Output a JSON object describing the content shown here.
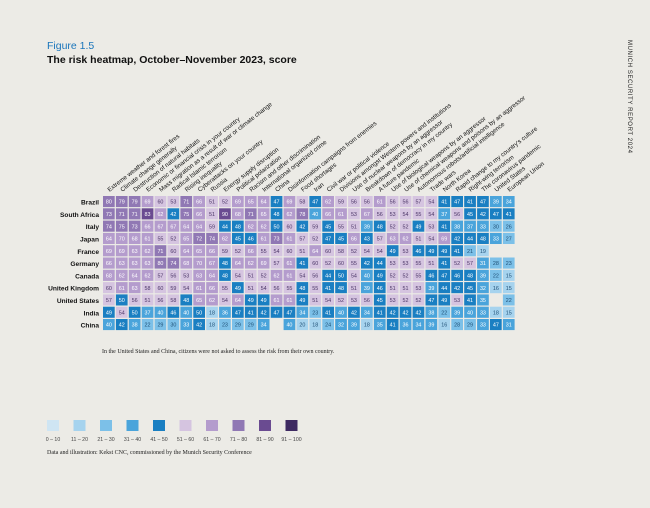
{
  "header": {
    "figure_label": "Figure 1.5",
    "title": "The risk heatmap, October–November 2023, score",
    "side_text": "MUNICH SECURITY REPORT 2024"
  },
  "footnote": "In the United States and China, citizens were not asked to assess the risk from their own country.",
  "source": "Data and illustration: Kekst CNC, commissioned by the Munich Security Conference",
  "chart_data": {
    "type": "heatmap",
    "countries": [
      "Brazil",
      "South Africa",
      "Italy",
      "Japan",
      "France",
      "Germany",
      "Canada",
      "United Kingdom",
      "United States",
      "India",
      "China"
    ],
    "risks": [
      "Extreme weather and forest fires",
      "Climate change generally",
      "Destruction of natural habitats",
      "Economic or financial crisis in your country",
      "Mass migration as a result of war or climate change",
      "Radical Islamic terrorism",
      "Rising inequality",
      "Cyberattacks on your country",
      "Russia",
      "Energy supply disruption",
      "Political polarization",
      "Racism and other discrimination",
      "International organized crime",
      "China",
      "Disinformation campaigns from enemies",
      "Food shortages",
      "Iran",
      "Civil war or political violence",
      "Divisions amongst Western powers and institutions",
      "Use of nuclear weapons by an aggressor",
      "Breakdown of democracy in my country",
      "A future pandemic",
      "Use of biological weapons by an aggressor",
      "Use of chemical weapons and poisons by an aggressor",
      "Autonomous robots/artificial intelligence",
      "Trade wars",
      "North Korea",
      "Rapid change to my country's culture",
      "Right-wing terrorism",
      "The coronavirus pandemic",
      "United States",
      "European Union"
    ],
    "values": [
      [
        80,
        79,
        79,
        69,
        60,
        53,
        71,
        66,
        51,
        52,
        69,
        65,
        64,
        47,
        69,
        58,
        47,
        62,
        59,
        56,
        56,
        61,
        56,
        56,
        57,
        54,
        41,
        47,
        41,
        47,
        39,
        34
      ],
      [
        73,
        71,
        71,
        83,
        62,
        42,
        75,
        66,
        51,
        90,
        68,
        71,
        65,
        48,
        62,
        78,
        40,
        66,
        61,
        53,
        67,
        56,
        53,
        54,
        55,
        54,
        37,
        56,
        45,
        42,
        47,
        41
      ],
      [
        74,
        75,
        73,
        66,
        67,
        67,
        64,
        64,
        59,
        44,
        48,
        62,
        62,
        50,
        60,
        42,
        59,
        45,
        55,
        51,
        39,
        48,
        52,
        52,
        49,
        53,
        41,
        38,
        37,
        33,
        30,
        26
      ],
      [
        64,
        70,
        68,
        61,
        55,
        52,
        65,
        72,
        74,
        62,
        45,
        46,
        61,
        73,
        61,
        57,
        52,
        47,
        45,
        66,
        43,
        57,
        63,
        62,
        51,
        54,
        69,
        42,
        44,
        48,
        33,
        27
      ],
      [
        69,
        69,
        63,
        62,
        71,
        60,
        64,
        65,
        66,
        59,
        52,
        66,
        55,
        54,
        60,
        51,
        64,
        60,
        58,
        52,
        54,
        54,
        49,
        53,
        46,
        49,
        49,
        41,
        21,
        19,
        null,
        null
      ],
      [
        66,
        63,
        63,
        63,
        80,
        74,
        68,
        70,
        67,
        48,
        64,
        62,
        69,
        57,
        61,
        41,
        60,
        52,
        60,
        55,
        42,
        44,
        53,
        53,
        55,
        51,
        41,
        52,
        57,
        31,
        28,
        23
      ],
      [
        68,
        62,
        64,
        62,
        57,
        56,
        53,
        63,
        64,
        48,
        54,
        51,
        52,
        62,
        61,
        54,
        56,
        44,
        50,
        54,
        40,
        49,
        52,
        52,
        55,
        46,
        47,
        46,
        48,
        39,
        22,
        15
      ],
      [
        60,
        61,
        63,
        58,
        60,
        59,
        54,
        61,
        66,
        55,
        49,
        51,
        54,
        56,
        55,
        48,
        55,
        41,
        48,
        51,
        39,
        46,
        51,
        51,
        53,
        39,
        44,
        42,
        45,
        32,
        16,
        15
      ],
      [
        57,
        50,
        56,
        51,
        56,
        58,
        48,
        65,
        62,
        54,
        64,
        49,
        49,
        61,
        61,
        49,
        51,
        54,
        52,
        53,
        56,
        45,
        53,
        52,
        52,
        47,
        49,
        53,
        41,
        35,
        null,
        22
      ],
      [
        49,
        54,
        50,
        37,
        40,
        46,
        40,
        50,
        18,
        36,
        47,
        41,
        42,
        47,
        47,
        34,
        23,
        41,
        40,
        42,
        34,
        41,
        42,
        42,
        42,
        38,
        22,
        39,
        40,
        33,
        18,
        15
      ],
      [
        40,
        42,
        38,
        22,
        29,
        30,
        33,
        42,
        18,
        23,
        29,
        29,
        34,
        null,
        40,
        20,
        18,
        24,
        32,
        39,
        18,
        35,
        41,
        36,
        34,
        39,
        16,
        28,
        29,
        33,
        47,
        31
      ]
    ],
    "legend": [
      {
        "label": "0 – 10",
        "color": "#cfe5f3"
      },
      {
        "label": "11 – 20",
        "color": "#a6d3ee"
      },
      {
        "label": "21 – 30",
        "color": "#7cc0e8"
      },
      {
        "label": "31 – 40",
        "color": "#4aa4db"
      },
      {
        "label": "41 – 50",
        "color": "#1a7fc2"
      },
      {
        "label": "51 – 60",
        "color": "#d5c4e0"
      },
      {
        "label": "61 – 70",
        "color": "#b49ccd"
      },
      {
        "label": "71 – 80",
        "color": "#9078b4"
      },
      {
        "label": "81 – 90",
        "color": "#6a4b91"
      },
      {
        "label": "91 – 100",
        "color": "#3e2a62"
      }
    ]
  }
}
